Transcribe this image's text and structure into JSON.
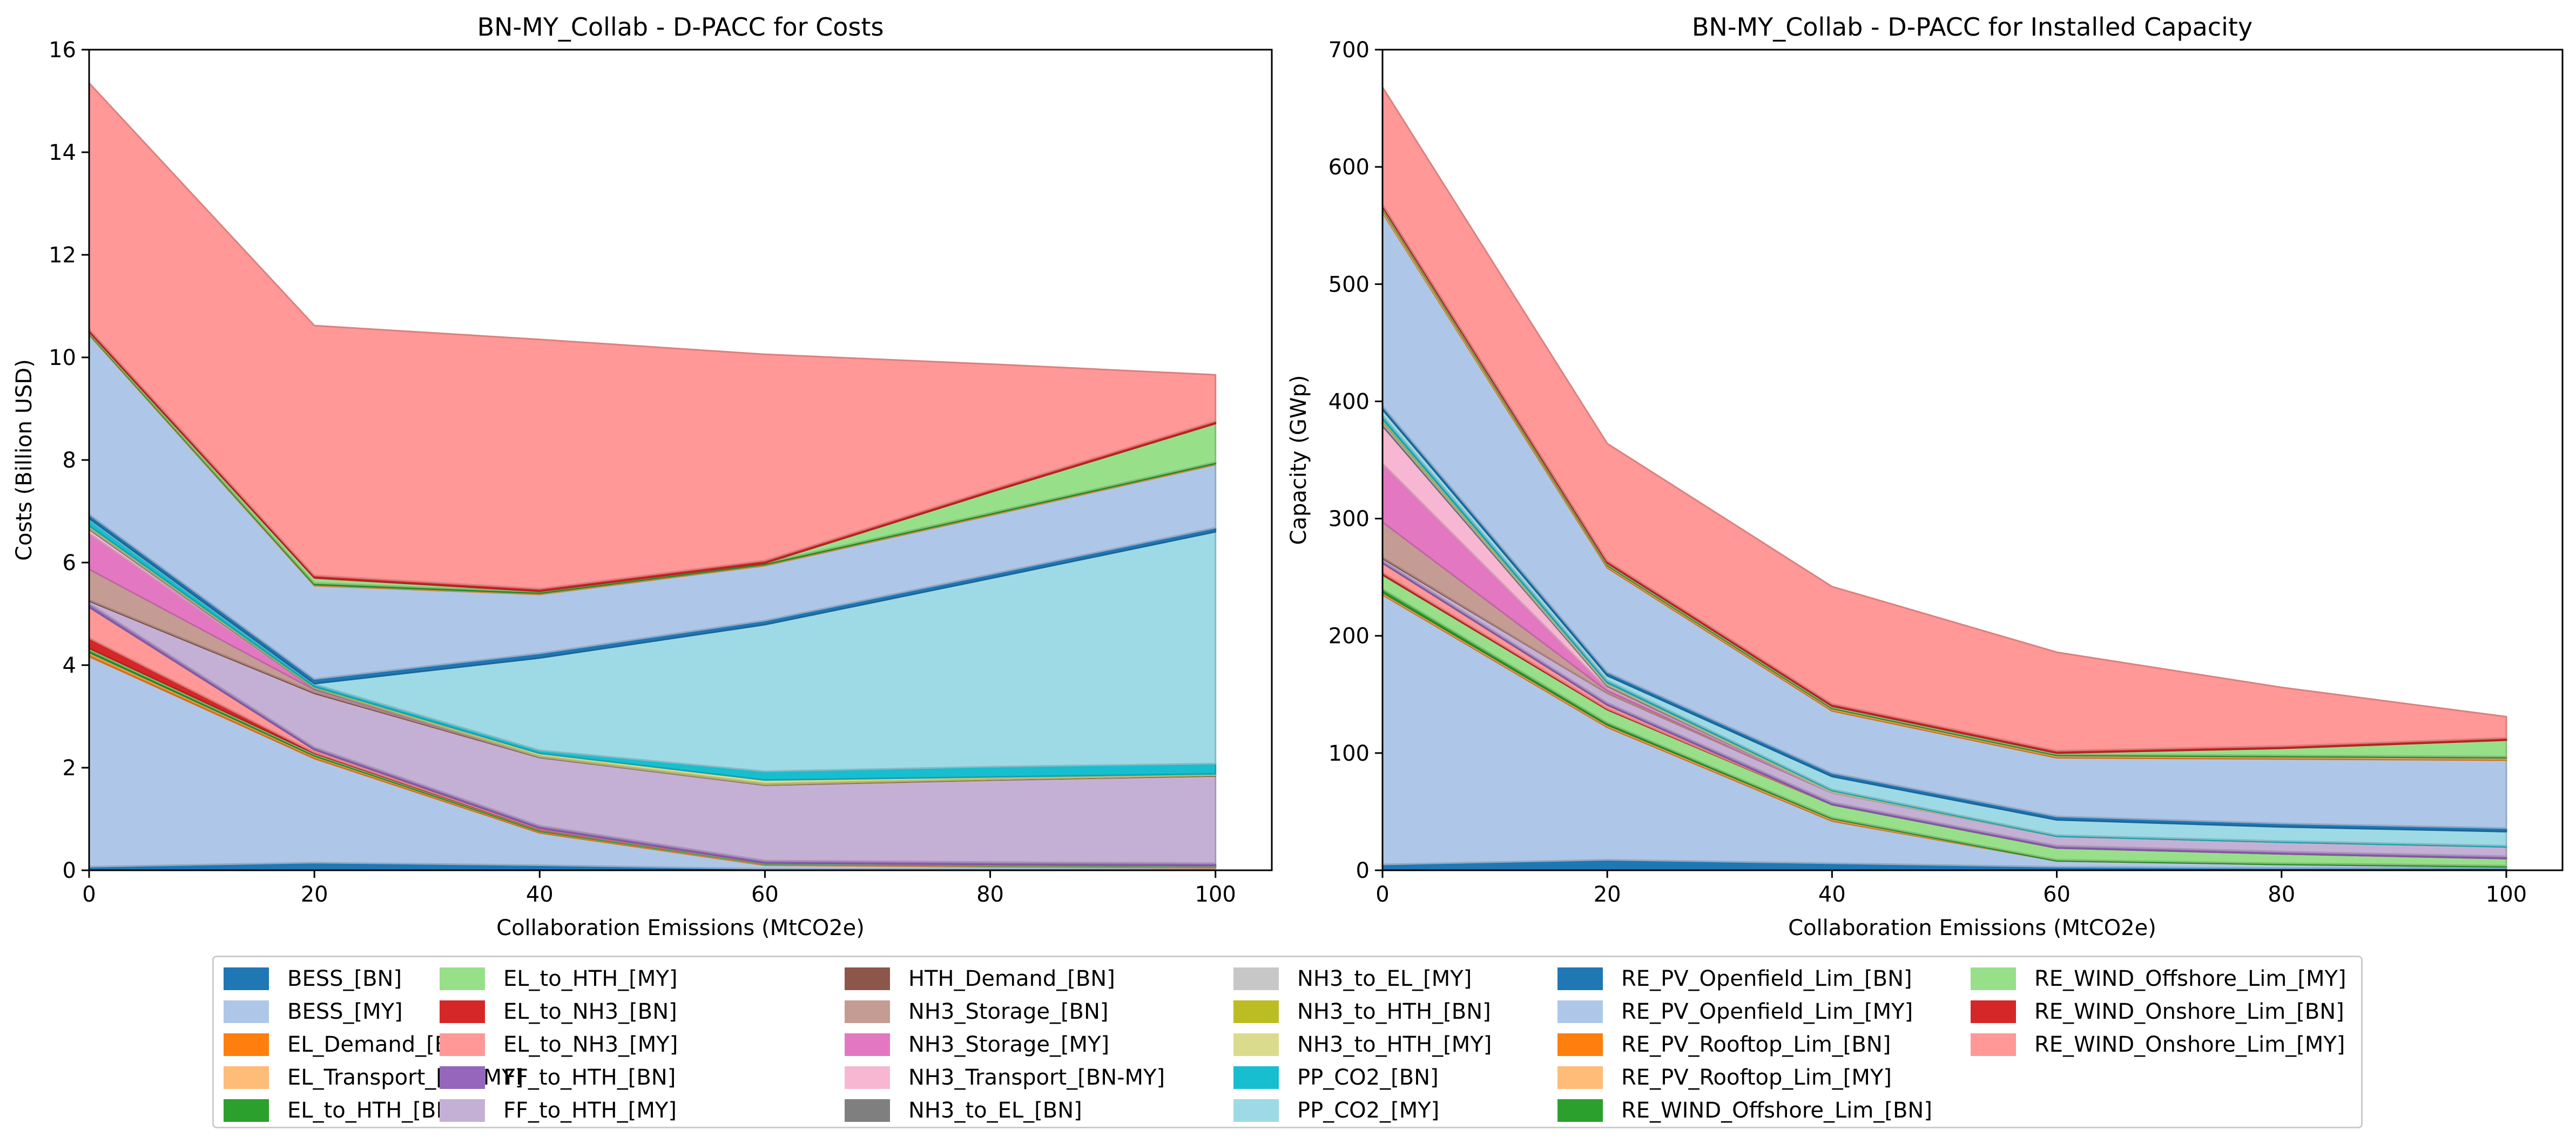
{
  "chart_data": [
    {
      "type": "area",
      "stacked": true,
      "title": "BN-MY_Collab - D-PACC for Costs",
      "xlabel": "Collaboration Emissions (MtCO2e)",
      "ylabel": "Costs (Billion USD)",
      "xlim": [
        0,
        105
      ],
      "ylim": [
        0,
        16
      ],
      "xticks": [
        0,
        20,
        40,
        60,
        80,
        100
      ],
      "yticks": [
        0,
        2,
        4,
        6,
        8,
        10,
        12,
        14,
        16
      ],
      "x": [
        0,
        20,
        40,
        60,
        80,
        100
      ],
      "series": [
        {
          "name": "BESS_[BN]",
          "values": [
            0.07,
            0.15,
            0.1,
            0.03,
            0.02,
            0.02
          ]
        },
        {
          "name": "BESS_[MY]",
          "values": [
            4.1,
            2.03,
            0.63,
            0.07,
            0.05,
            0.03
          ]
        },
        {
          "name": "EL_Demand_[BN]",
          "values": [
            0.05,
            0.03,
            0.02,
            0.01,
            0.01,
            0.01
          ]
        },
        {
          "name": "EL_Transport_[BN-MY]",
          "values": [
            0.03,
            0.02,
            0.01,
            0.01,
            0.01,
            0.01
          ]
        },
        {
          "name": "EL_to_HTH_[BN]",
          "values": [
            0.05,
            0.03,
            0.02,
            0.01,
            0.01,
            0.01
          ]
        },
        {
          "name": "EL_to_HTH_[MY]",
          "values": [
            0.03,
            0.02,
            0.01,
            0.01,
            0.01,
            0.01
          ]
        },
        {
          "name": "EL_to_NH3_[BN]",
          "values": [
            0.2,
            0.02,
            0.01,
            0,
            0,
            0
          ]
        },
        {
          "name": "EL_to_NH3_[MY]",
          "values": [
            0.6,
            0.05,
            0.02,
            0,
            0,
            0
          ]
        },
        {
          "name": "FF_to_HTH_[BN]",
          "values": [
            0.07,
            0.05,
            0.05,
            0.05,
            0.05,
            0.05
          ]
        },
        {
          "name": "FF_to_HTH_[MY]",
          "values": [
            0.05,
            1.05,
            1.33,
            1.47,
            1.6,
            1.7
          ]
        },
        {
          "name": "HTH_Demand_[BN]",
          "values": [
            0.02,
            0.02,
            0.01,
            0.01,
            0.01,
            0.01
          ]
        },
        {
          "name": "NH3_Storage_[BN]",
          "values": [
            0.6,
            0.05,
            0,
            0,
            0,
            0
          ]
        },
        {
          "name": "NH3_Storage_[MY]",
          "values": [
            0.7,
            0.02,
            0,
            0,
            0,
            0
          ]
        },
        {
          "name": "NH3_Transport_[BN-MY]",
          "values": [
            0.08,
            0,
            0,
            0,
            0,
            0
          ]
        },
        {
          "name": "NH3_to_EL_[BN]",
          "values": [
            0.02,
            0.01,
            0,
            0,
            0,
            0
          ]
        },
        {
          "name": "NH3_to_EL_[MY]",
          "values": [
            0.02,
            0.01,
            0.01,
            0.01,
            0,
            0
          ]
        },
        {
          "name": "NH3_to_HTH_[BN]",
          "values": [
            0.01,
            0.01,
            0.01,
            0.01,
            0.01,
            0.01
          ]
        },
        {
          "name": "NH3_to_HTH_[MY]",
          "values": [
            0.02,
            0.01,
            0.05,
            0.07,
            0.04,
            0.02
          ]
        },
        {
          "name": "PP_CO2_[BN]",
          "values": [
            0.12,
            0.05,
            0.06,
            0.17,
            0.2,
            0.2
          ]
        },
        {
          "name": "PP_CO2_[MY]",
          "values": [
            0.02,
            0.01,
            1.8,
            2.86,
            3.67,
            4.52
          ]
        },
        {
          "name": "RE_PV_Openfield_Lim_[BN]",
          "values": [
            0.08,
            0.09,
            0.09,
            0.08,
            0.08,
            0.08
          ]
        },
        {
          "name": "RE_PV_Openfield_Lim_[MY]",
          "values": [
            3.5,
            1.82,
            1.15,
            1.07,
            1.15,
            1.23
          ]
        },
        {
          "name": "RE_PV_Rooftop_Lim_[BN]",
          "values": [
            0.01,
            0.01,
            0.01,
            0.01,
            0.01,
            0.01
          ]
        },
        {
          "name": "RE_PV_Rooftop_Lim_[MY]",
          "values": [
            0.01,
            0.01,
            0.01,
            0.01,
            0.01,
            0.01
          ]
        },
        {
          "name": "RE_WIND_Offshore_Lim_[BN]",
          "values": [
            0.02,
            0.03,
            0.03,
            0.03,
            0.03,
            0.03
          ]
        },
        {
          "name": "RE_WIND_Offshore_Lim_[MY]",
          "values": [
            0.02,
            0.1,
            0.01,
            0,
            0.4,
            0.75
          ]
        },
        {
          "name": "RE_WIND_Onshore_Lim_[BN]",
          "values": [
            0.05,
            0.05,
            0.05,
            0.05,
            0.05,
            0.05
          ]
        },
        {
          "name": "RE_WIND_Onshore_Lim_[MY]",
          "values": [
            4.8,
            4.87,
            4.86,
            4.02,
            2.45,
            0.9
          ]
        }
      ]
    },
    {
      "type": "area",
      "stacked": true,
      "title": "BN-MY_Collab - D-PACC for Installed Capacity",
      "xlabel": "Collaboration Emissions (MtCO2e)",
      "ylabel": "Capacity (GWp)",
      "xlim": [
        0,
        105
      ],
      "ylim": [
        0,
        700
      ],
      "xticks": [
        0,
        20,
        40,
        60,
        80,
        100
      ],
      "yticks": [
        0,
        100,
        200,
        300,
        400,
        500,
        600,
        700
      ],
      "x": [
        0,
        20,
        40,
        60,
        80,
        100
      ],
      "series": [
        {
          "name": "BESS_[BN]",
          "values": [
            5,
            9,
            6,
            3,
            2,
            2
          ]
        },
        {
          "name": "BESS_[MY]",
          "values": [
            230,
            113,
            36,
            5,
            3,
            1
          ]
        },
        {
          "name": "EL_Demand_[BN]",
          "values": [
            1,
            1,
            1,
            0,
            0,
            0
          ]
        },
        {
          "name": "EL_Transport_[BN-MY]",
          "values": [
            1,
            1,
            1,
            0,
            0,
            0
          ]
        },
        {
          "name": "EL_to_HTH_[BN]",
          "values": [
            3,
            2,
            1,
            1,
            1,
            1
          ]
        },
        {
          "name": "EL_to_HTH_[MY]",
          "values": [
            12,
            11,
            11,
            10,
            8,
            6
          ]
        },
        {
          "name": "EL_to_NH3_[BN]",
          "values": [
            2,
            1,
            0,
            0,
            0,
            0
          ]
        },
        {
          "name": "EL_to_NH3_[MY]",
          "values": [
            8,
            3,
            0,
            0,
            0,
            0
          ]
        },
        {
          "name": "FF_to_HTH_[BN]",
          "values": [
            2,
            2,
            2,
            2,
            2,
            2
          ]
        },
        {
          "name": "FF_to_HTH_[MY]",
          "values": [
            2,
            8,
            8,
            8,
            8,
            8
          ]
        },
        {
          "name": "HTH_Demand_[BN]",
          "values": [
            1,
            0,
            0,
            0,
            0,
            0
          ]
        },
        {
          "name": "NH3_Storage_[BN]",
          "values": [
            30,
            2,
            0,
            0,
            0,
            0
          ]
        },
        {
          "name": "NH3_Storage_[MY]",
          "values": [
            50,
            2,
            0,
            0,
            0,
            0
          ]
        },
        {
          "name": "NH3_Transport_[BN-MY]",
          "values": [
            32,
            2,
            0,
            0,
            0,
            0
          ]
        },
        {
          "name": "NH3_to_EL_[BN]",
          "values": [
            2,
            1,
            0,
            0,
            0,
            0
          ]
        },
        {
          "name": "NH3_to_EL_[MY]",
          "values": [
            2,
            1,
            1,
            0,
            0,
            0
          ]
        },
        {
          "name": "NH3_to_HTH_[BN]",
          "values": [
            1,
            0,
            0,
            0,
            0,
            0
          ]
        },
        {
          "name": "NH3_to_HTH_[MY]",
          "values": [
            1,
            1,
            1,
            0,
            0,
            0
          ]
        },
        {
          "name": "PP_CO2_[BN]",
          "values": [
            3,
            2,
            1,
            1,
            1,
            1
          ]
        },
        {
          "name": "PP_CO2_[MY]",
          "values": [
            5,
            4,
            11,
            13,
            12,
            12
          ]
        },
        {
          "name": "RE_PV_Openfield_Lim_[BN]",
          "values": [
            3,
            3,
            3,
            3,
            3,
            3
          ]
        },
        {
          "name": "RE_PV_Openfield_Lim_[MY]",
          "values": [
            165,
            89,
            53,
            50,
            55,
            58
          ]
        },
        {
          "name": "RE_PV_Rooftop_Lim_[BN]",
          "values": [
            1,
            1,
            1,
            1,
            1,
            1
          ]
        },
        {
          "name": "RE_PV_Rooftop_Lim_[MY]",
          "values": [
            2,
            1,
            1,
            1,
            1,
            1
          ]
        },
        {
          "name": "RE_WIND_Offshore_Lim_[BN]",
          "values": [
            1,
            1,
            1,
            1,
            1,
            1
          ]
        },
        {
          "name": "RE_WIND_Offshore_Lim_[MY]",
          "values": [
            1,
            1,
            1,
            1,
            6,
            14
          ]
        },
        {
          "name": "RE_WIND_Onshore_Lim_[BN]",
          "values": [
            2,
            2,
            2,
            2,
            2,
            2
          ]
        },
        {
          "name": "RE_WIND_Onshore_Lim_[MY]",
          "values": [
            100,
            100,
            100,
            84,
            50,
            18
          ]
        }
      ]
    }
  ],
  "legend": {
    "placement": "bottom-center",
    "columns": 6,
    "entries": [
      {
        "label": "BESS_[BN]",
        "color": "#1f77b4"
      },
      {
        "label": "BESS_[MY]",
        "color": "#aec7e8"
      },
      {
        "label": "EL_Demand_[BN]",
        "color": "#ff7f0e"
      },
      {
        "label": "EL_Transport_[BN-MY]",
        "color": "#ffbb78"
      },
      {
        "label": "EL_to_HTH_[BN]",
        "color": "#2ca02c"
      },
      {
        "label": "EL_to_HTH_[MY]",
        "color": "#98df8a"
      },
      {
        "label": "EL_to_NH3_[BN]",
        "color": "#d62728"
      },
      {
        "label": "EL_to_NH3_[MY]",
        "color": "#ff9896"
      },
      {
        "label": "FF_to_HTH_[BN]",
        "color": "#9467bd"
      },
      {
        "label": "FF_to_HTH_[MY]",
        "color": "#c5b0d5"
      },
      {
        "label": "HTH_Demand_[BN]",
        "color": "#8c564b"
      },
      {
        "label": "NH3_Storage_[BN]",
        "color": "#c49c94"
      },
      {
        "label": "NH3_Storage_[MY]",
        "color": "#e377c2"
      },
      {
        "label": "NH3_Transport_[BN-MY]",
        "color": "#f7b6d2"
      },
      {
        "label": "NH3_to_EL_[BN]",
        "color": "#7f7f7f"
      },
      {
        "label": "NH3_to_EL_[MY]",
        "color": "#c7c7c7"
      },
      {
        "label": "NH3_to_HTH_[BN]",
        "color": "#bcbd22"
      },
      {
        "label": "NH3_to_HTH_[MY]",
        "color": "#dbdb8d"
      },
      {
        "label": "PP_CO2_[BN]",
        "color": "#17becf"
      },
      {
        "label": "PP_CO2_[MY]",
        "color": "#9edae5"
      },
      {
        "label": "RE_PV_Openfield_Lim_[BN]",
        "color": "#1f77b4"
      },
      {
        "label": "RE_PV_Openfield_Lim_[MY]",
        "color": "#aec7e8"
      },
      {
        "label": "RE_PV_Rooftop_Lim_[BN]",
        "color": "#ff7f0e"
      },
      {
        "label": "RE_PV_Rooftop_Lim_[MY]",
        "color": "#ffbb78"
      },
      {
        "label": "RE_WIND_Offshore_Lim_[BN]",
        "color": "#2ca02c"
      },
      {
        "label": "RE_WIND_Offshore_Lim_[MY]",
        "color": "#98df8a"
      },
      {
        "label": "RE_WIND_Onshore_Lim_[BN]",
        "color": "#d62728"
      },
      {
        "label": "RE_WIND_Onshore_Lim_[MY]",
        "color": "#ff9896"
      }
    ]
  }
}
